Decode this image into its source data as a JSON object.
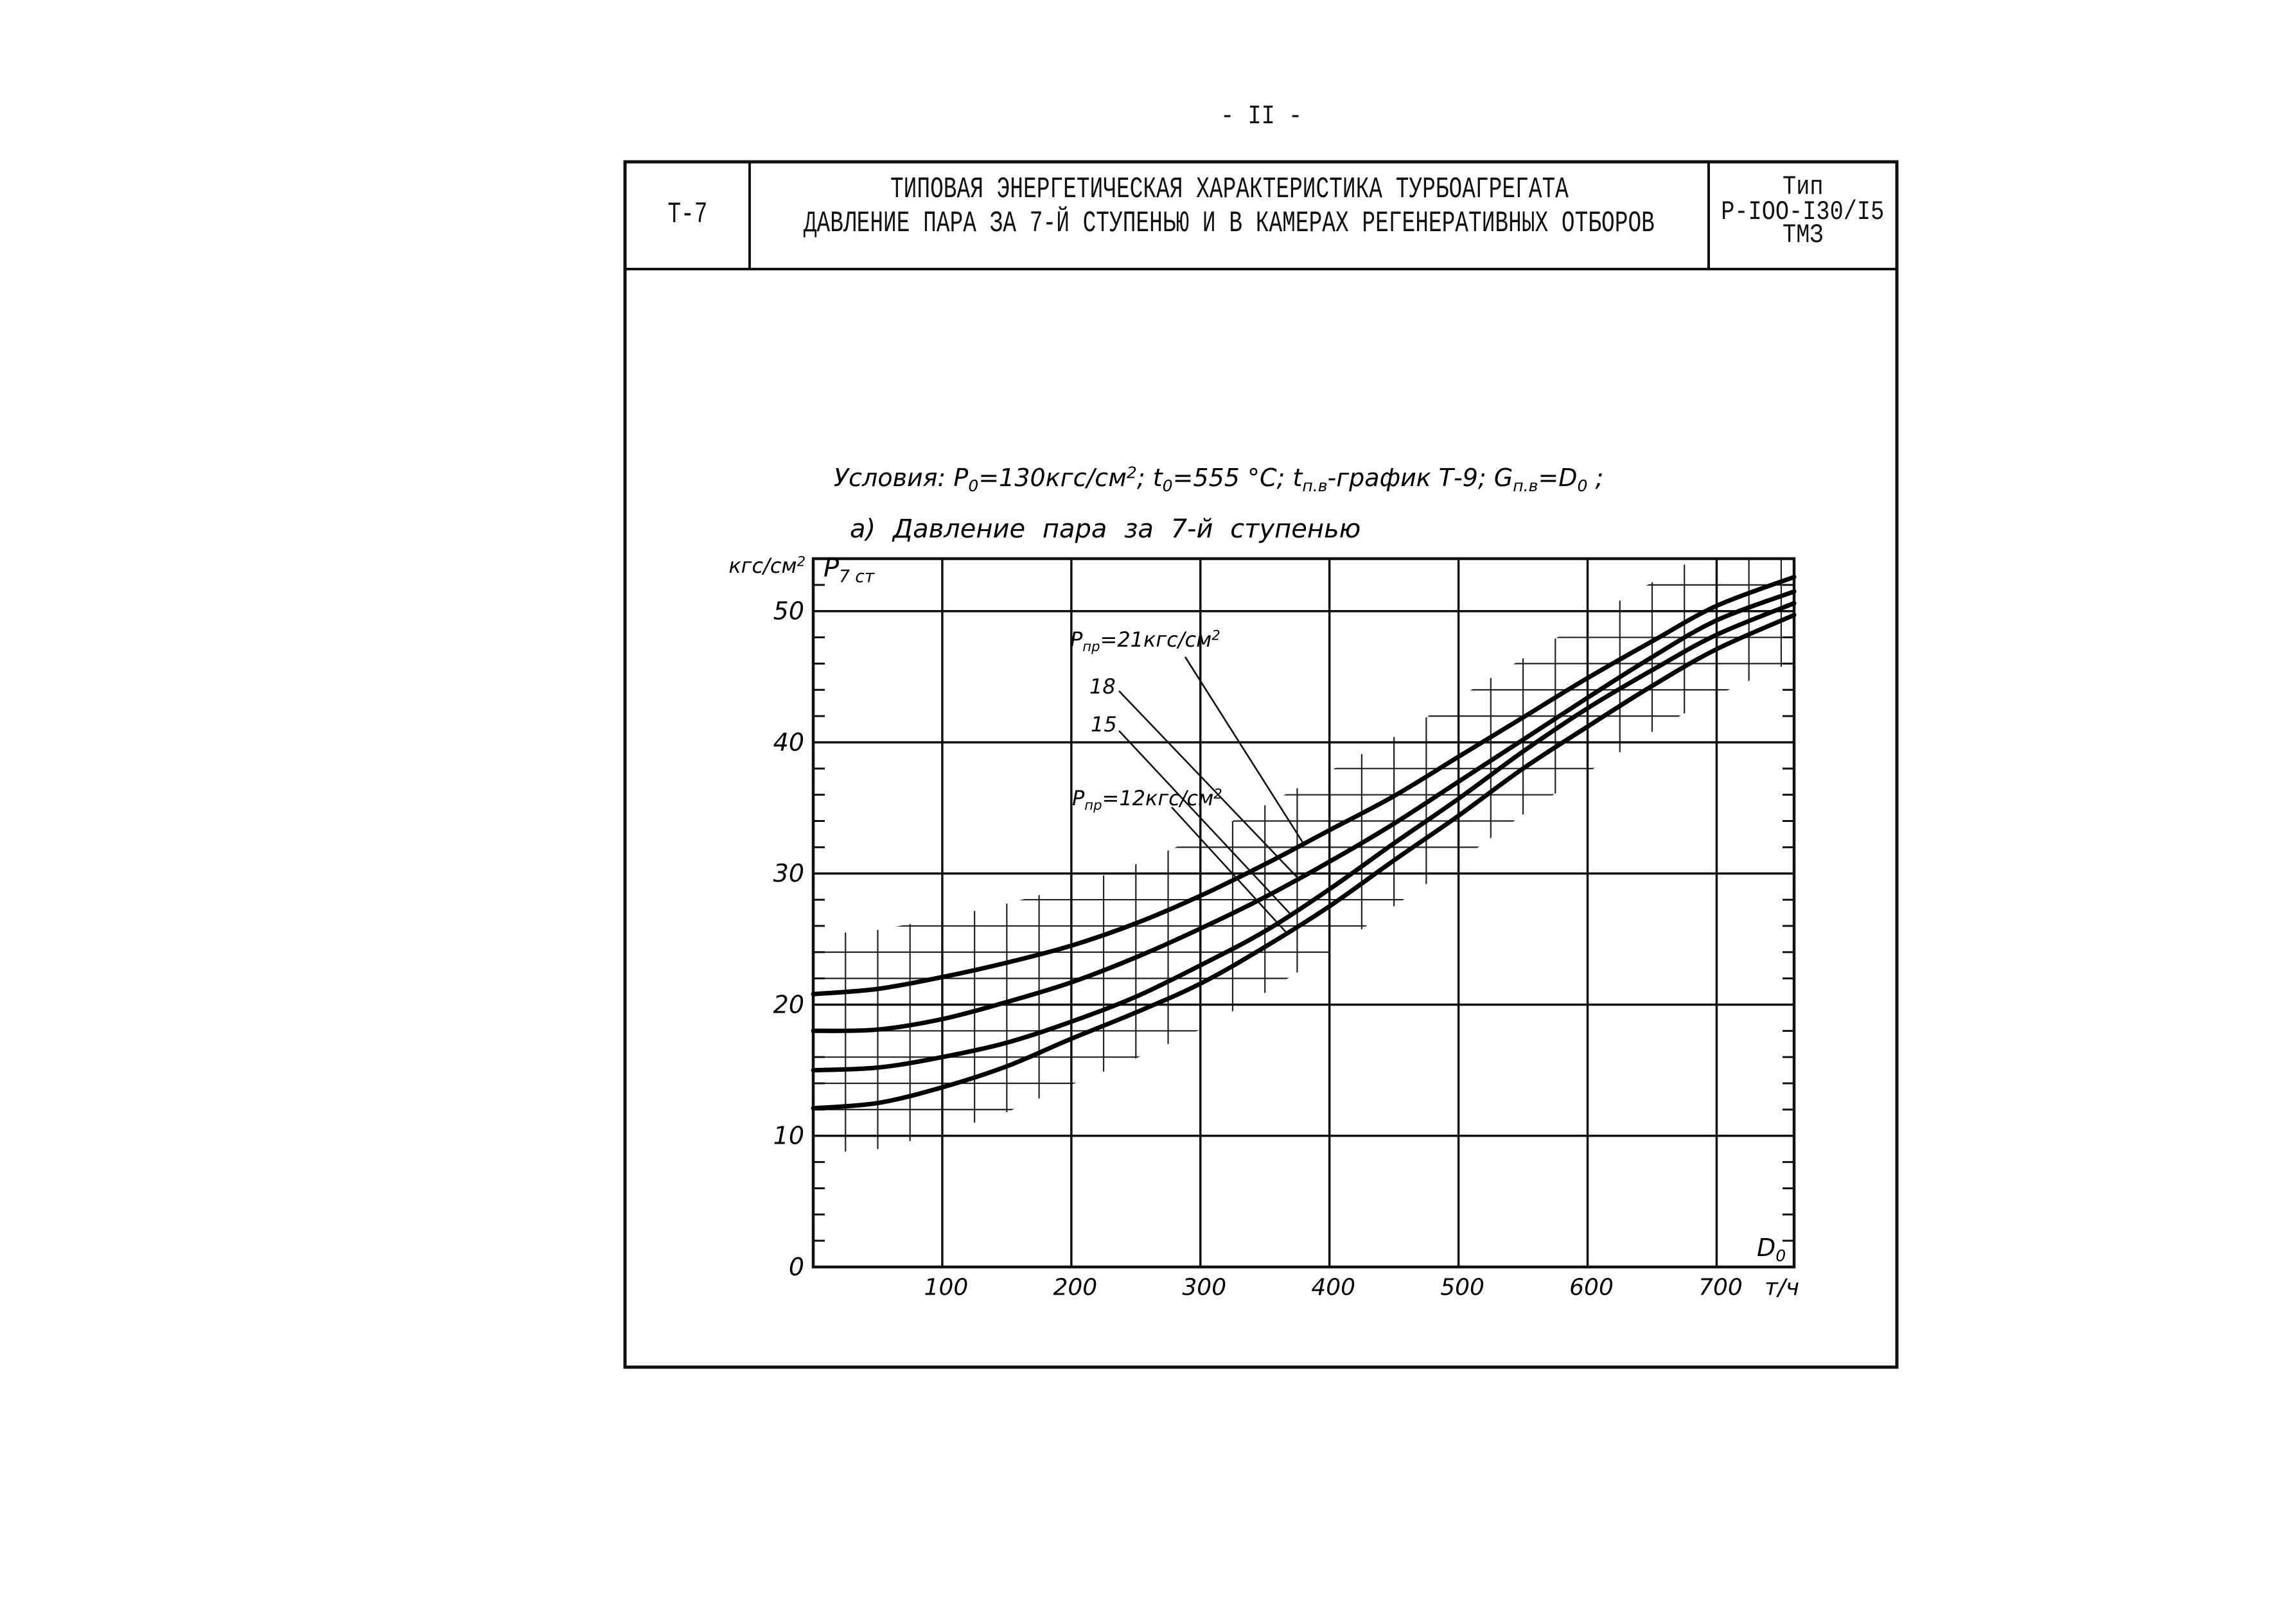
{
  "page_number": "- II -",
  "header": {
    "code": "Т-7",
    "title_lines": [
      "ТИПОВАЯ ЭНЕРГЕТИЧЕСКАЯ ХАРАКТЕРИСТИКА ТУРБОАГРЕГАТА",
      "ДАВЛЕНИЕ ПАРА ЗА 7-Й СТУПЕНЬЮ И В КАМЕРАХ РЕГЕНЕРАТИВНЫХ ОТБОРОВ"
    ],
    "type_lines": [
      "Тип",
      "Р-IOO-I30/I5",
      "ТМЗ"
    ]
  },
  "conditions": [
    {
      "text": "Условия: P",
      "sub": "0"
    },
    {
      "text": "=130кгс/см",
      "sup": "2"
    },
    {
      "text": "; t",
      "sub": "0"
    },
    {
      "text": "=555 °C; t",
      "sub": "п.в"
    },
    {
      "text": "-график Т-9; G",
      "sub": "п.в"
    },
    {
      "text": "=D",
      "sub": "0"
    },
    {
      "text": " ;"
    }
  ],
  "chart_data": {
    "type": "line",
    "title": "а) Давление пара за 7-й ступенью",
    "ylabel": {
      "text": "кгс/см",
      "sup": "2"
    },
    "ysymbol": {
      "text": "P",
      "sub": "7 ст"
    },
    "xlabel": "т/ч",
    "xsymbol": {
      "text": "D",
      "sub": "0"
    },
    "xlim": [
      0,
      760
    ],
    "ylim": [
      0,
      54
    ],
    "xticks": [
      100,
      200,
      300,
      400,
      500,
      600,
      700
    ],
    "yticks": [
      0,
      10,
      20,
      30,
      40,
      50
    ],
    "grid": true,
    "x": [
      0,
      50,
      100,
      150,
      200,
      250,
      300,
      350,
      400,
      450,
      500,
      550,
      600,
      650,
      700,
      760
    ],
    "series": [
      {
        "label": {
          "text": "P",
          "sub": "пр",
          "value": "=21кгс/см",
          "sup": "2"
        },
        "values": [
          20.8,
          21.2,
          22.1,
          23.2,
          24.5,
          26.2,
          28.3,
          30.7,
          33.3,
          35.9,
          38.9,
          41.9,
          44.9,
          47.7,
          50.4,
          52.6
        ]
      },
      {
        "label": {
          "value": "18"
        },
        "values": [
          18.0,
          18.1,
          18.9,
          20.2,
          21.7,
          23.6,
          25.8,
          28.2,
          30.9,
          33.8,
          37.0,
          40.2,
          43.4,
          46.5,
          49.3,
          51.5
        ]
      },
      {
        "label": {
          "value": "15"
        },
        "values": [
          15.0,
          15.2,
          16.0,
          17.1,
          18.7,
          20.6,
          23.0,
          25.6,
          28.8,
          32.3,
          35.7,
          39.3,
          42.6,
          45.5,
          48.2,
          50.6
        ]
      },
      {
        "label": {
          "text": "P",
          "sub": "пр",
          "value": "=12кгс/см",
          "sup": "2"
        },
        "values": [
          12.1,
          12.5,
          13.7,
          15.3,
          17.4,
          19.4,
          21.6,
          24.4,
          27.5,
          31.0,
          34.4,
          38.0,
          41.2,
          44.3,
          47.1,
          49.7
        ]
      }
    ]
  }
}
